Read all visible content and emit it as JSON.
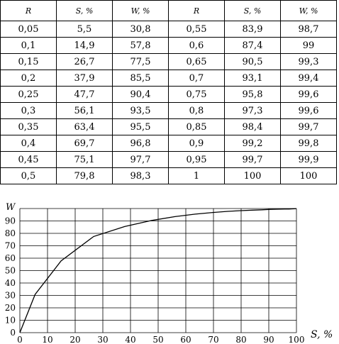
{
  "table": {
    "headers": [
      "R",
      "S, %",
      "W, %",
      "R",
      "S, %",
      "W, %"
    ],
    "rows": [
      [
        "0,05",
        "5,5",
        "30,8",
        "0,55",
        "83,9",
        "98,7"
      ],
      [
        "0,1",
        "14,9",
        "57,8",
        "0,6",
        "87,4",
        "99"
      ],
      [
        "0,15",
        "26,7",
        "77,5",
        "0,65",
        "90,5",
        "99,3"
      ],
      [
        "0,2",
        "37,9",
        "85,5",
        "0,7",
        "93,1",
        "99,4"
      ],
      [
        "0,25",
        "47,7",
        "90,4",
        "0,75",
        "95,8",
        "99,6"
      ],
      [
        "0,3",
        "56,1",
        "93,5",
        "0,8",
        "97,3",
        "99,6"
      ],
      [
        "0,35",
        "63,4",
        "95,5",
        "0,85",
        "98,4",
        "99,7"
      ],
      [
        "0,4",
        "69,7",
        "96,8",
        "0,9",
        "99,2",
        "99,8"
      ],
      [
        "0,45",
        "75,1",
        "97,7",
        "0,95",
        "99,7",
        "99,9"
      ],
      [
        "0,5",
        "79,8",
        "98,3",
        "1",
        "100",
        "100"
      ]
    ]
  },
  "chart_data": {
    "type": "line",
    "xlabel": "S, %",
    "ylabel": "W",
    "xlim": [
      0,
      100
    ],
    "ylim": [
      0,
      100
    ],
    "x_ticks": [
      0,
      10,
      20,
      30,
      40,
      50,
      60,
      70,
      80,
      90,
      100
    ],
    "y_ticks": [
      0,
      10,
      20,
      30,
      40,
      50,
      60,
      70,
      80,
      90
    ],
    "grid": true,
    "series": [
      {
        "x": [
          0,
          5.5,
          14.9,
          26.7,
          37.9,
          47.7,
          56.1,
          63.4,
          69.7,
          75.1,
          79.8,
          83.9,
          87.4,
          90.5,
          93.1,
          95.8,
          97.3,
          98.4,
          99.2,
          99.7,
          100
        ],
        "y": [
          0,
          30.8,
          57.8,
          77.5,
          85.5,
          90.4,
          93.5,
          95.5,
          96.8,
          97.7,
          98.3,
          98.7,
          99,
          99.3,
          99.4,
          99.6,
          99.6,
          99.7,
          99.8,
          99.9,
          100
        ]
      }
    ]
  }
}
